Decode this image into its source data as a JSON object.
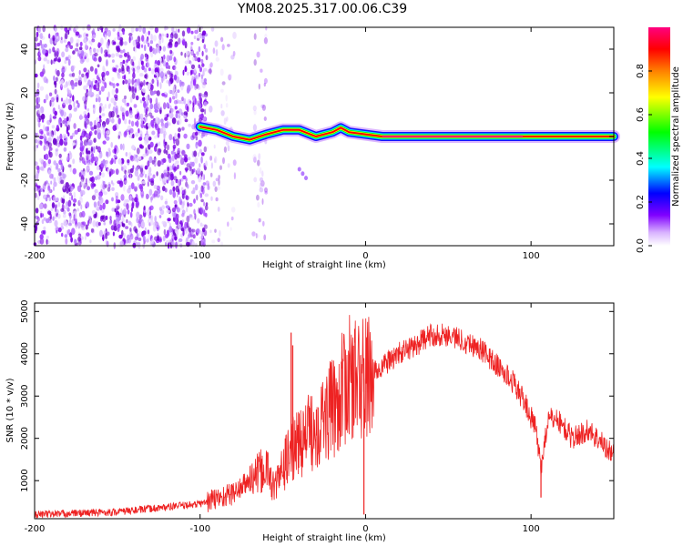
{
  "title": "YM08.2025.317.00.06.C39",
  "chart_data": [
    {
      "type": "heatmap",
      "title": "YM08.2025.317.00.06.C39",
      "xlabel": "Height of straight line (km)",
      "ylabel": "Frequency (Hz)",
      "xlim": [
        -200,
        150
      ],
      "ylim": [
        -50,
        50
      ],
      "xticks": [
        -200,
        -100,
        0,
        100
      ],
      "xtick_labels": [
        "-200",
        "-100",
        "0",
        "100"
      ],
      "yticks": [
        -40,
        -20,
        0,
        20,
        40
      ],
      "ytick_labels": [
        "-40",
        "-20",
        "0",
        "20",
        "40"
      ],
      "colorbar": {
        "label": "Normalized spectral amplitude",
        "range": [
          0,
          1
        ],
        "ticks": [
          0,
          0.2,
          0.4,
          0.6,
          0.8
        ],
        "tick_labels": [
          "0.0",
          "0.2",
          "0.4",
          "0.6",
          "0.8"
        ],
        "colors": [
          "#ffffff",
          "#d9b3ff",
          "#8000ff",
          "#0000ff",
          "#00ffff",
          "#00ff00",
          "#ffff00",
          "#ff8000",
          "#ff0000",
          "#ff0080"
        ]
      },
      "noise_region": {
        "x_range": [
          -200,
          -60
        ],
        "y_range": [
          -50,
          50
        ]
      },
      "signal_track": [
        {
          "x": -100,
          "y": 4.5
        },
        {
          "x": -90,
          "y": 3
        },
        {
          "x": -80,
          "y": 0
        },
        {
          "x": -70,
          "y": -1.5
        },
        {
          "x": -60,
          "y": 1
        },
        {
          "x": -50,
          "y": 3
        },
        {
          "x": -40,
          "y": 3
        },
        {
          "x": -30,
          "y": 0
        },
        {
          "x": -20,
          "y": 2
        },
        {
          "x": -15,
          "y": 4
        },
        {
          "x": -10,
          "y": 2
        },
        {
          "x": 0,
          "y": 1
        },
        {
          "x": 10,
          "y": 0
        },
        {
          "x": 50,
          "y": 0
        },
        {
          "x": 100,
          "y": 0
        },
        {
          "x": 150,
          "y": 0
        }
      ]
    },
    {
      "type": "line",
      "xlabel": "Height of straight line (km)",
      "ylabel": "SNR (10 * v/v)",
      "xlim": [
        -200,
        150
      ],
      "ylim": [
        100,
        5200
      ],
      "xticks": [
        -200,
        -100,
        0,
        100
      ],
      "xtick_labels": [
        "-200",
        "-100",
        "0",
        "100"
      ],
      "yticks": [
        1000,
        2000,
        3000,
        4000,
        5000
      ],
      "ytick_labels": [
        "1000",
        "2000",
        "3000",
        "4000",
        "5000"
      ],
      "color": "#ee2222",
      "envelope": {
        "x": [
          -200,
          -150,
          -100,
          -80,
          -70,
          -60,
          -55,
          -50,
          -45,
          -40,
          -30,
          -20,
          -10,
          0,
          10,
          20,
          30,
          40,
          50,
          60,
          70,
          80,
          90,
          98,
          103,
          106,
          110,
          115,
          125,
          135,
          140,
          150
        ],
        "y": [
          200,
          260,
          450,
          700,
          1000,
          1300,
          800,
          1300,
          1700,
          1900,
          2300,
          2700,
          3400,
          3400,
          3700,
          4000,
          4200,
          4450,
          4450,
          4300,
          4100,
          3700,
          3300,
          2700,
          2200,
          1300,
          2400,
          2500,
          2000,
          2200,
          2000,
          1600
        ]
      },
      "spikes": [
        {
          "x": -45,
          "y": 4500
        },
        {
          "x": -44,
          "y": 4200
        },
        {
          "x": -1,
          "y": 200
        },
        {
          "x": 106,
          "y": 600
        }
      ]
    }
  ]
}
